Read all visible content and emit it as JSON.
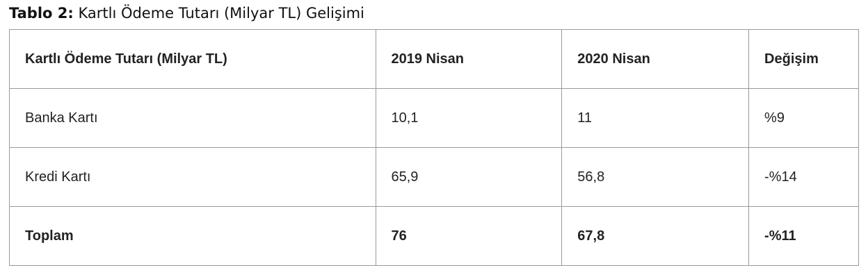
{
  "title": {
    "label": "Tablo 2:",
    "text": "Kartlı Ödeme Tutarı (Milyar TL) Gelişimi"
  },
  "table": {
    "header": [
      "Kartlı Ödeme Tutarı (Milyar TL)",
      "2019 Nisan",
      "2020 Nisan",
      "Değişim"
    ],
    "rows": [
      [
        "Banka Kartı",
        "10,1",
        "11",
        "%9"
      ],
      [
        "Kredi Kartı",
        "65,9",
        "56,8",
        "-%14"
      ],
      [
        "Toplam",
        "76",
        "67,8",
        "-%11"
      ]
    ]
  }
}
